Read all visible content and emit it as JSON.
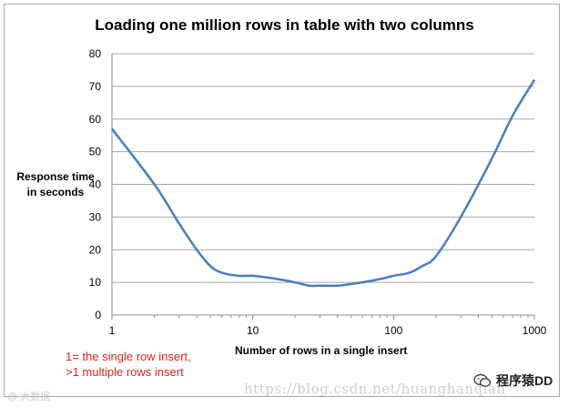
{
  "chart_data": {
    "type": "line",
    "title": "Loading one million rows in table with two columns",
    "xlabel": "Number of rows in a single insert",
    "ylabel_lines": [
      "Response time",
      "in seconds"
    ],
    "x_scale": "log",
    "xlim": [
      1,
      1000
    ],
    "ylim": [
      0,
      80
    ],
    "x_ticks": [
      1,
      10,
      100,
      1000
    ],
    "y_ticks": [
      0,
      10,
      20,
      30,
      40,
      50,
      60,
      70,
      80
    ],
    "grid": "horizontal",
    "line_color": "#4a7ebb",
    "series": [
      {
        "x": [
          1,
          2,
          3,
          4,
          5,
          6,
          8,
          10,
          15,
          20,
          25,
          30,
          40,
          50,
          60,
          80,
          100,
          130,
          160,
          200,
          300,
          500,
          700,
          1000
        ],
        "y": [
          57,
          40,
          28,
          20,
          15,
          13,
          12,
          12,
          11,
          10,
          9,
          9,
          9,
          9.5,
          10,
          11,
          12,
          13,
          15,
          18,
          30,
          48,
          61,
          72
        ]
      }
    ]
  },
  "annotation": {
    "line1": "1= the single row  insert,",
    "line2": ">1 multiple rows insert"
  },
  "watermark": {
    "left": "@ 大数据",
    "url": "https://blog.csdn.net/huanghanqian",
    "brand": "程序猿DD"
  },
  "colors": {
    "grid": "#a6a6a6",
    "axis": "#8c8c8c",
    "annotation": "#e4221b"
  }
}
